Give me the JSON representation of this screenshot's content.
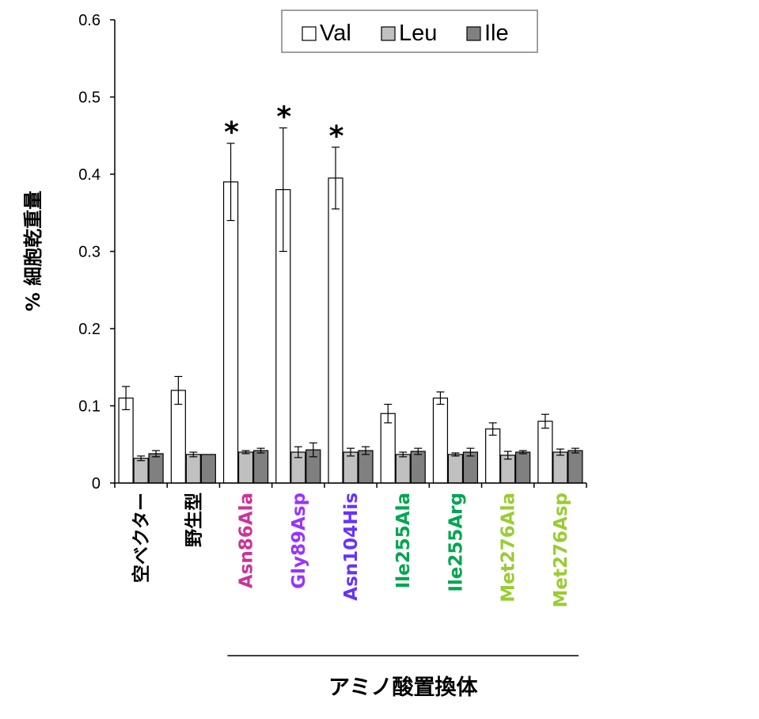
{
  "chart_data": {
    "type": "bar",
    "ylabel": "% 細胞乾重量",
    "ylim": [
      0,
      0.6
    ],
    "yticks": [
      "0",
      "0.1",
      "0.2",
      "0.3",
      "0.4",
      "0.5",
      "0.6"
    ],
    "grid": false,
    "legend_position": "top-right",
    "categories": [
      "空ベクター",
      "野生型",
      "Asn86Ala",
      "Gly89Asp",
      "Asn104His",
      "Ile255Ala",
      "Ile255Arg",
      "Met276Ala",
      "Met276Asp"
    ],
    "category_colors": [
      "#000000",
      "#000000",
      "#cc3399",
      "#9933ff",
      "#6633ff",
      "#00a651",
      "#00a651",
      "#99cc33",
      "#99cc33"
    ],
    "series": [
      {
        "name": "Val",
        "color": "#ffffff",
        "values": [
          0.11,
          0.12,
          0.39,
          0.38,
          0.395,
          0.09,
          0.11,
          0.07,
          0.08
        ],
        "errors": [
          0.015,
          0.018,
          0.05,
          0.08,
          0.04,
          0.012,
          0.008,
          0.008,
          0.009
        ]
      },
      {
        "name": "Leu",
        "color": "#c0c0c0",
        "values": [
          0.032,
          0.037,
          0.04,
          0.04,
          0.04,
          0.037,
          0.037,
          0.036,
          0.04
        ],
        "errors": [
          0.003,
          0.003,
          0.002,
          0.007,
          0.005,
          0.003,
          0.002,
          0.005,
          0.004
        ]
      },
      {
        "name": "Ile",
        "color": "#808080",
        "values": [
          0.038,
          0.037,
          0.042,
          0.043,
          0.042,
          0.041,
          0.04,
          0.04,
          0.042
        ],
        "errors": [
          0.004,
          0.0,
          0.003,
          0.009,
          0.005,
          0.004,
          0.005,
          0.002,
          0.003
        ]
      }
    ],
    "significance_marks": [
      {
        "category": "Asn86Ala",
        "label": "*"
      },
      {
        "category": "Gly89Asp",
        "label": "*"
      },
      {
        "category": "Asn104His",
        "label": "*"
      }
    ],
    "group_annotation": {
      "label": "アミノ酸置換体",
      "from_category": "Asn86Ala",
      "to_category": "Met276Asp"
    }
  }
}
